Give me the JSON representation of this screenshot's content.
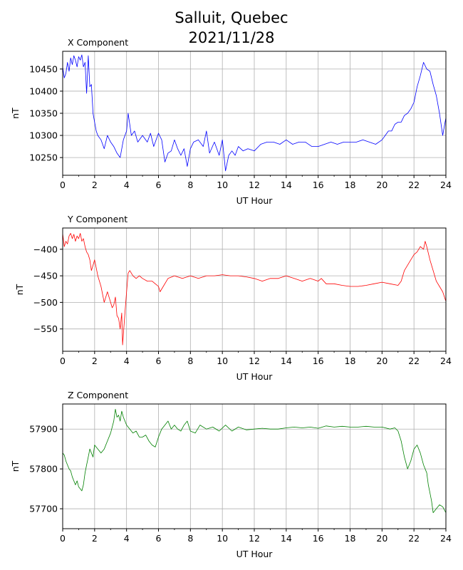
{
  "figure": {
    "title_line1": "Salluit, Quebec",
    "title_line2": "2021/11/28"
  },
  "chart_data": [
    {
      "type": "line",
      "title": "X Component",
      "xlabel": "UT Hour",
      "ylabel": "nT",
      "color": "#0000ff",
      "xlim": [
        0,
        24
      ],
      "ylim": [
        10210,
        10490
      ],
      "xticks": [
        0,
        2,
        4,
        6,
        8,
        10,
        12,
        14,
        16,
        18,
        20,
        22,
        24
      ],
      "yticks": [
        10250,
        10300,
        10350,
        10400,
        10450
      ],
      "grid": true,
      "series": [
        {
          "x": [
            0,
            0.1,
            0.2,
            0.3,
            0.4,
            0.5,
            0.6,
            0.7,
            0.8,
            0.9,
            1.0,
            1.1,
            1.2,
            1.3,
            1.4,
            1.5,
            1.6,
            1.7,
            1.8,
            1.9,
            2.0,
            2.1,
            2.2,
            2.4,
            2.6,
            2.8,
            3.0,
            3.2,
            3.4,
            3.6,
            3.8,
            4.0,
            4.1,
            4.3,
            4.5,
            4.7,
            5.0,
            5.3,
            5.5,
            5.7,
            6.0,
            6.2,
            6.4,
            6.6,
            6.8,
            7.0,
            7.2,
            7.4,
            7.6,
            7.8,
            8.0,
            8.2,
            8.5,
            8.8,
            9.0,
            9.2,
            9.5,
            9.8,
            10.0,
            10.2,
            10.4,
            10.6,
            10.8,
            11.0,
            11.3,
            11.6,
            12.0,
            12.4,
            12.8,
            13.2,
            13.6,
            14.0,
            14.4,
            14.8,
            15.2,
            15.6,
            16.0,
            16.4,
            16.8,
            17.2,
            17.6,
            18.0,
            18.4,
            18.8,
            19.2,
            19.6,
            20.0,
            20.2,
            20.4,
            20.6,
            20.8,
            21.0,
            21.2,
            21.4,
            21.6,
            21.8,
            22.0,
            22.2,
            22.4,
            22.6,
            22.8,
            23.0,
            23.2,
            23.4,
            23.6,
            23.8,
            24.0
          ],
          "values": [
            10455,
            10430,
            10440,
            10465,
            10445,
            10475,
            10460,
            10480,
            10470,
            10455,
            10478,
            10470,
            10482,
            10455,
            10465,
            10395,
            10480,
            10410,
            10415,
            10350,
            10330,
            10310,
            10300,
            10290,
            10270,
            10300,
            10285,
            10275,
            10260,
            10250,
            10290,
            10310,
            10350,
            10300,
            10310,
            10285,
            10300,
            10285,
            10305,
            10275,
            10305,
            10290,
            10240,
            10260,
            10265,
            10290,
            10270,
            10255,
            10270,
            10230,
            10270,
            10285,
            10290,
            10275,
            10310,
            10260,
            10285,
            10255,
            10290,
            10220,
            10255,
            10265,
            10255,
            10275,
            10265,
            10270,
            10265,
            10280,
            10285,
            10285,
            10280,
            10290,
            10280,
            10285,
            10285,
            10275,
            10275,
            10280,
            10285,
            10280,
            10285,
            10285,
            10285,
            10290,
            10285,
            10280,
            10290,
            10300,
            10310,
            10310,
            10325,
            10330,
            10330,
            10345,
            10350,
            10360,
            10375,
            10410,
            10435,
            10465,
            10450,
            10445,
            10415,
            10390,
            10350,
            10300,
            10340
          ]
        }
      ]
    },
    {
      "type": "line",
      "title": "Y Component",
      "xlabel": "UT Hour",
      "ylabel": "nT",
      "color": "#ff0000",
      "xlim": [
        0,
        24
      ],
      "ylim": [
        -592,
        -360
      ],
      "xticks": [
        0,
        2,
        4,
        6,
        8,
        10,
        12,
        14,
        16,
        18,
        20,
        22,
        24
      ],
      "yticks": [
        -550,
        -500,
        -450,
        -400
      ],
      "grid": true,
      "series": [
        {
          "x": [
            0,
            0.1,
            0.2,
            0.3,
            0.4,
            0.5,
            0.6,
            0.7,
            0.8,
            0.9,
            1.0,
            1.1,
            1.2,
            1.3,
            1.4,
            1.5,
            1.6,
            1.7,
            1.8,
            1.9,
            2.0,
            2.1,
            2.2,
            2.4,
            2.6,
            2.8,
            3.0,
            3.1,
            3.2,
            3.3,
            3.4,
            3.5,
            3.6,
            3.7,
            3.75,
            3.8,
            3.9,
            4.0,
            4.1,
            4.2,
            4.4,
            4.6,
            4.8,
            5.0,
            5.3,
            5.6,
            5.8,
            6.0,
            6.1,
            6.3,
            6.6,
            7.0,
            7.5,
            8.0,
            8.5,
            9.0,
            9.5,
            10.0,
            10.5,
            11.0,
            11.5,
            12.0,
            12.5,
            13.0,
            13.5,
            14.0,
            14.5,
            15.0,
            15.5,
            16.0,
            16.2,
            16.5,
            17.0,
            17.5,
            18.0,
            18.5,
            19.0,
            19.5,
            20.0,
            20.5,
            21.0,
            21.2,
            21.4,
            21.6,
            21.8,
            22.0,
            22.2,
            22.4,
            22.6,
            22.7,
            22.8,
            23.0,
            23.2,
            23.4,
            23.6,
            23.8,
            24.0
          ],
          "values": [
            -370,
            -395,
            -385,
            -390,
            -375,
            -370,
            -380,
            -372,
            -385,
            -375,
            -380,
            -370,
            -385,
            -380,
            -395,
            -405,
            -410,
            -420,
            -440,
            -430,
            -420,
            -435,
            -450,
            -470,
            -500,
            -480,
            -500,
            -510,
            -505,
            -490,
            -525,
            -530,
            -550,
            -520,
            -580,
            -560,
            -520,
            -480,
            -445,
            -440,
            -450,
            -455,
            -450,
            -455,
            -460,
            -460,
            -465,
            -470,
            -480,
            -470,
            -455,
            -450,
            -455,
            -450,
            -455,
            -450,
            -450,
            -448,
            -450,
            -450,
            -452,
            -455,
            -460,
            -455,
            -455,
            -450,
            -455,
            -460,
            -455,
            -460,
            -455,
            -465,
            -465,
            -468,
            -470,
            -470,
            -468,
            -465,
            -462,
            -465,
            -468,
            -460,
            -440,
            -430,
            -420,
            -410,
            -405,
            -395,
            -400,
            -385,
            -395,
            -420,
            -440,
            -460,
            -470,
            -480,
            -498
          ]
        }
      ]
    },
    {
      "type": "line",
      "title": "Z Component",
      "xlabel": "UT Hour",
      "ylabel": "nT",
      "color": "#008000",
      "xlim": [
        0,
        24
      ],
      "ylim": [
        57650,
        57963
      ],
      "xticks": [
        0,
        2,
        4,
        6,
        8,
        10,
        12,
        14,
        16,
        18,
        20,
        22,
        24
      ],
      "yticks": [
        57700,
        57800,
        57900
      ],
      "grid": true,
      "series": [
        {
          "x": [
            0,
            0.1,
            0.2,
            0.3,
            0.4,
            0.5,
            0.6,
            0.7,
            0.8,
            0.9,
            1.0,
            1.1,
            1.2,
            1.3,
            1.4,
            1.5,
            1.6,
            1.7,
            1.8,
            1.9,
            2.0,
            2.2,
            2.4,
            2.6,
            2.8,
            3.0,
            3.2,
            3.3,
            3.4,
            3.5,
            3.6,
            3.7,
            3.8,
            4.0,
            4.2,
            4.4,
            4.6,
            4.8,
            5.0,
            5.2,
            5.4,
            5.6,
            5.8,
            6.0,
            6.2,
            6.4,
            6.6,
            6.8,
            7.0,
            7.2,
            7.4,
            7.6,
            7.8,
            8.0,
            8.3,
            8.6,
            9.0,
            9.4,
            9.8,
            10.2,
            10.6,
            11.0,
            11.5,
            12.0,
            12.5,
            13.0,
            13.5,
            14.0,
            14.5,
            15.0,
            15.5,
            16.0,
            16.5,
            17.0,
            17.5,
            18.0,
            18.5,
            19.0,
            19.5,
            20.0,
            20.5,
            20.8,
            21.0,
            21.2,
            21.4,
            21.6,
            21.8,
            22.0,
            22.2,
            22.4,
            22.6,
            22.8,
            22.9,
            23.0,
            23.1,
            23.2,
            23.4,
            23.6,
            23.8,
            24.0
          ],
          "values": [
            57840,
            57835,
            57820,
            57810,
            57800,
            57795,
            57780,
            57770,
            57760,
            57770,
            57755,
            57750,
            57745,
            57760,
            57790,
            57810,
            57830,
            57850,
            57840,
            57830,
            57860,
            57850,
            57840,
            57850,
            57870,
            57890,
            57920,
            57950,
            57930,
            57935,
            57920,
            57945,
            57930,
            57910,
            57900,
            57890,
            57895,
            57880,
            57880,
            57885,
            57870,
            57860,
            57855,
            57880,
            57900,
            57910,
            57920,
            57900,
            57910,
            57900,
            57895,
            57910,
            57920,
            57895,
            57890,
            57910,
            57900,
            57905,
            57895,
            57910,
            57895,
            57905,
            57898,
            57900,
            57902,
            57900,
            57900,
            57903,
            57905,
            57903,
            57905,
            57902,
            57908,
            57905,
            57907,
            57905,
            57905,
            57907,
            57905,
            57905,
            57900,
            57903,
            57895,
            57870,
            57830,
            57800,
            57820,
            57850,
            57860,
            57840,
            57810,
            57790,
            57760,
            57740,
            57720,
            57690,
            57700,
            57710,
            57705,
            57690
          ]
        }
      ]
    }
  ]
}
